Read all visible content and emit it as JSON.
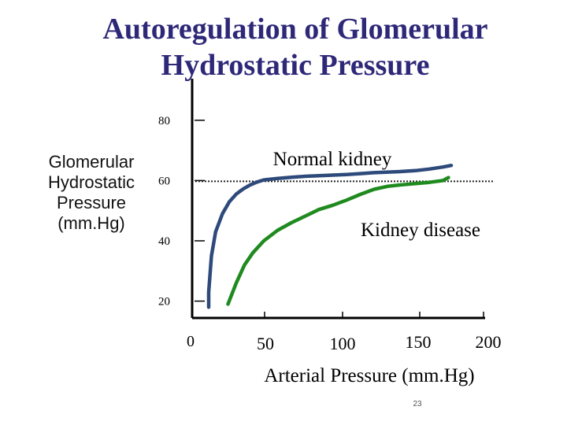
{
  "slide": {
    "number": "23"
  },
  "chart_data": {
    "type": "line",
    "title_lines": [
      "Autoregulation of Glomerular",
      "Hydrostatic Pressure"
    ],
    "ylabel_lines": [
      "Glomerular",
      "Hydrostatic",
      "Pressure",
      "(mm.Hg)"
    ],
    "xlabel": "Arterial Pressure (mm.Hg)",
    "x_origin_label": "0",
    "xticks": [
      50,
      100,
      150,
      200
    ],
    "yticks": [
      20,
      40,
      60,
      80
    ],
    "ylim": [
      12,
      92
    ],
    "reference_line": {
      "y": 60,
      "style": "dotted"
    },
    "series": [
      {
        "name": "Normal kidney",
        "color": "#2e4a7a",
        "x": [
          0,
          0,
          2,
          5,
          10,
          15,
          20,
          25,
          30,
          35,
          40,
          50,
          60,
          70,
          80,
          90,
          100,
          110,
          120,
          140,
          150,
          160,
          170,
          176
        ],
        "y": [
          18,
          23,
          35,
          43,
          49,
          53,
          55.5,
          57.2,
          58.5,
          59.5,
          60.2,
          60.7,
          61.1,
          61.4,
          61.6,
          61.8,
          62.0,
          62.3,
          62.6,
          63.0,
          63.3,
          63.8,
          64.5,
          65
        ]
      },
      {
        "name": "Kidney disease",
        "color": "#1f8a1f",
        "x": [
          14,
          20,
          26,
          32,
          40,
          50,
          60,
          70,
          80,
          90,
          100,
          110,
          120,
          130,
          140,
          150,
          160,
          170,
          174
        ],
        "y": [
          19,
          26,
          32,
          36,
          40,
          43.5,
          46,
          48.2,
          50.4,
          51.8,
          53.5,
          55.4,
          57.1,
          58.1,
          58.6,
          59.0,
          59.4,
          60.0,
          61
        ]
      }
    ]
  }
}
